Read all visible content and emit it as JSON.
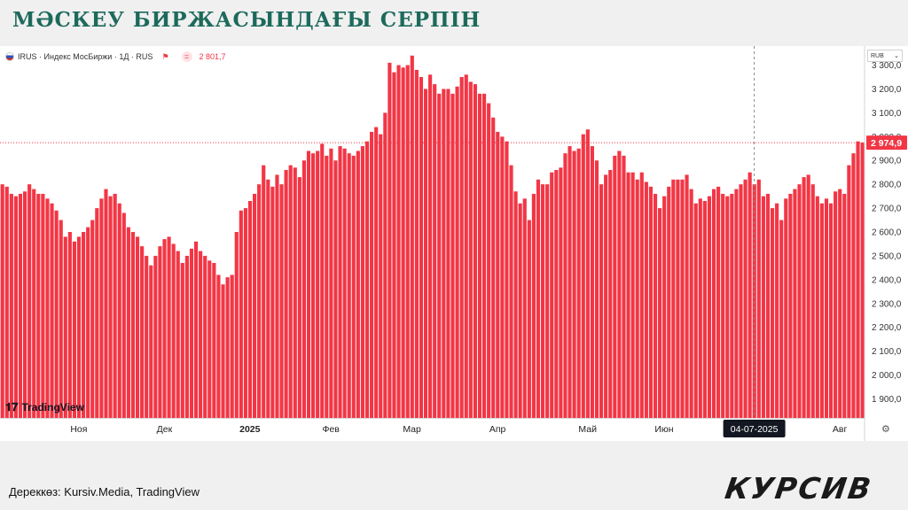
{
  "title": "МӘСКЕУ БИРЖАСЫНДАҒЫ СЕРПІН",
  "source": "Дереккөз: Kursiv.Media, TradingView",
  "brand": "КУРСИВ",
  "legend": {
    "symbol": "IRUS · Индекс МосБиржи · 1Д · RUS",
    "value": "2 801,7"
  },
  "currency": "RUB",
  "tv_logo": "TradingView",
  "colors": {
    "bar": "#f23645",
    "title": "#1d6a5c",
    "price_line": "#f23645"
  },
  "chart_data": {
    "type": "bar",
    "y_axis_position": "right",
    "ylim": [
      1820,
      3380
    ],
    "yticks": [
      1900,
      2000,
      2100,
      2200,
      2300,
      2400,
      2500,
      2600,
      2700,
      2800,
      2900,
      3000,
      3100,
      3200,
      3300
    ],
    "ytick_labels": [
      "1 900,0",
      "2 000,0",
      "2 100,0",
      "2 200,0",
      "2 300,0",
      "2 400,0",
      "2 500,0",
      "2 600,0",
      "2 700,0",
      "2 800,0",
      "2 900,0",
      "3 000,0",
      "3 100,0",
      "3 200,0",
      "3 300,0"
    ],
    "xtick_labels": [
      {
        "label": "Ноя",
        "index": 17
      },
      {
        "label": "Дек",
        "index": 36
      },
      {
        "label": "2025",
        "index": 55
      },
      {
        "label": "Фев",
        "index": 73
      },
      {
        "label": "Мар",
        "index": 91
      },
      {
        "label": "Апр",
        "index": 110
      },
      {
        "label": "Май",
        "index": 130
      },
      {
        "label": "Июн",
        "index": 147
      },
      {
        "label": "Авг",
        "index": 186
      }
    ],
    "crosshair": {
      "label": "04-07-2025",
      "index": 167
    },
    "last_price": {
      "value": 2974.9,
      "label": "2 974,9"
    },
    "values": [
      2800,
      2790,
      2760,
      2750,
      2760,
      2770,
      2800,
      2780,
      2760,
      2760,
      2740,
      2720,
      2690,
      2650,
      2580,
      2600,
      2560,
      2580,
      2600,
      2620,
      2650,
      2700,
      2740,
      2780,
      2750,
      2760,
      2720,
      2680,
      2620,
      2600,
      2580,
      2540,
      2500,
      2460,
      2500,
      2540,
      2570,
      2580,
      2550,
      2520,
      2470,
      2500,
      2530,
      2560,
      2520,
      2500,
      2480,
      2470,
      2420,
      2380,
      2410,
      2420,
      2600,
      2690,
      2700,
      2730,
      2760,
      2800,
      2880,
      2820,
      2790,
      2840,
      2800,
      2860,
      2880,
      2870,
      2830,
      2900,
      2940,
      2930,
      2940,
      2970,
      2920,
      2950,
      2900,
      2960,
      2950,
      2930,
      2920,
      2940,
      2960,
      2980,
      3020,
      3040,
      3010,
      3100,
      3310,
      3270,
      3300,
      3290,
      3300,
      3340,
      3280,
      3250,
      3200,
      3260,
      3220,
      3180,
      3200,
      3200,
      3180,
      3210,
      3250,
      3260,
      3230,
      3220,
      3180,
      3180,
      3140,
      3080,
      3020,
      3000,
      2980,
      2880,
      2770,
      2720,
      2740,
      2650,
      2760,
      2820,
      2800,
      2800,
      2850,
      2860,
      2870,
      2930,
      2960,
      2940,
      2950,
      3010,
      3030,
      2960,
      2900,
      2800,
      2840,
      2860,
      2920,
      2940,
      2920,
      2850,
      2850,
      2820,
      2850,
      2810,
      2790,
      2760,
      2700,
      2750,
      2790,
      2820,
      2820,
      2820,
      2840,
      2780,
      2720,
      2740,
      2730,
      2750,
      2780,
      2790,
      2760,
      2750,
      2760,
      2780,
      2800,
      2820,
      2850,
      2800,
      2820,
      2750,
      2760,
      2700,
      2720,
      2650,
      2740,
      2760,
      2780,
      2800,
      2830,
      2840,
      2800,
      2750,
      2720,
      2740,
      2720,
      2770,
      2780,
      2760,
      2880,
      2930,
      2980,
      2974.9
    ]
  }
}
